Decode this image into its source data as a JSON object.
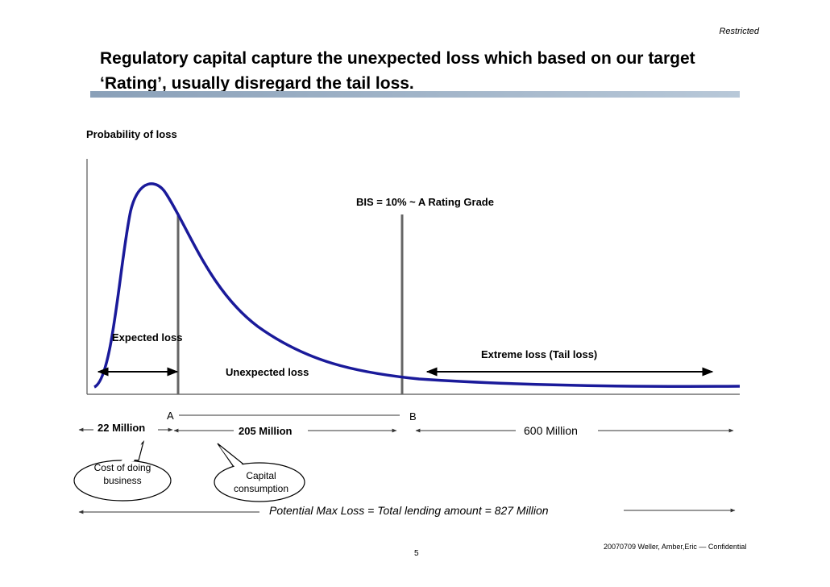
{
  "header": {
    "restricted": "Restricted",
    "title_line1": "Regulatory capital capture the unexpected loss which based on our target",
    "title_line2": "‘Rating’, usually disregard the tail loss."
  },
  "diagram": {
    "y_axis_label": "Probability of loss",
    "expected_loss_label": "Expected loss",
    "bis_label": "BIS = 10% ~ A Rating Grade",
    "tail_loss_label": "Extreme loss (Tail loss)",
    "unexpected_loss_label": "Unexpected loss",
    "marker_a": "A",
    "marker_b": "B",
    "value_expected": "22 Million",
    "value_unexpected": "205 Million",
    "value_tail": "600 Million",
    "callout_expected": "Cost of doing business",
    "callout_unexpected": "Capital consumption",
    "max_loss_label": "Potential Max Loss = Total lending amount =  827 Million",
    "colors": {
      "curve": "#1a1a9a",
      "title_bar": "#8aa0b8"
    }
  },
  "footer": {
    "confidential": "20070709 Weller, Amber,Eric — Confidential",
    "page_number": "5"
  }
}
